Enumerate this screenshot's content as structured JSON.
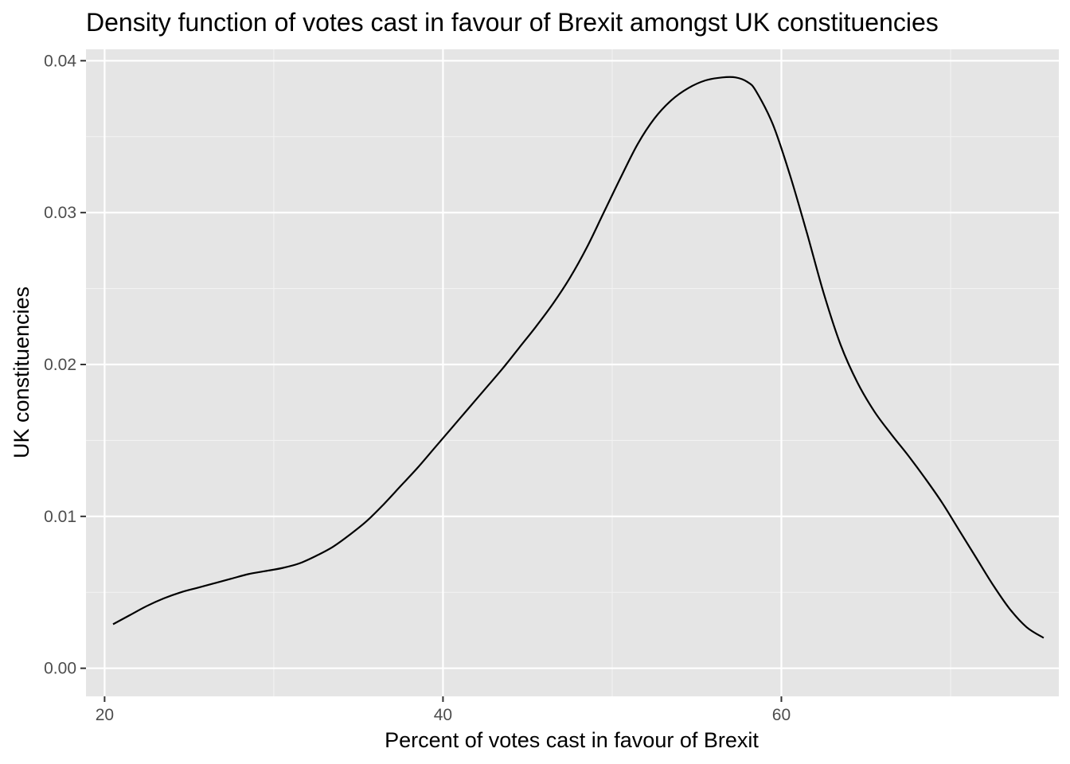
{
  "chart_data": {
    "type": "area",
    "title": "Density function of votes cast in favour of Brexit amongst UK constituencies",
    "xlabel": "Percent of votes cast in favour of Brexit",
    "ylabel": "UK constituencies",
    "xlim": [
      18.9,
      76.4
    ],
    "ylim": [
      -0.00185,
      0.04075
    ],
    "x_ticks": [
      20,
      40,
      60
    ],
    "x_tick_labels": [
      "20",
      "40",
      "60"
    ],
    "x_minor_ticks": [
      30,
      50,
      70
    ],
    "y_ticks": [
      0.0,
      0.01,
      0.02,
      0.03,
      0.04
    ],
    "y_tick_labels": [
      "0.00",
      "0.01",
      "0.02",
      "0.03",
      "0.04"
    ],
    "y_minor_ticks": [
      0.005,
      0.015,
      0.025,
      0.035
    ],
    "grid": true,
    "legend": "none",
    "colors": {
      "panel_background": "#e5e5e5",
      "grid_major": "#ffffff",
      "grid_minor": "#f2f2f2",
      "line": "#000000",
      "tick_text": "#4d4d4d",
      "title_text": "#000000"
    },
    "series": [
      {
        "x": [
          20.5,
          21.5,
          22.5,
          23.5,
          24.5,
          25.5,
          26.5,
          27.5,
          28.5,
          29.5,
          30.5,
          31.5,
          32.5,
          33.5,
          34.5,
          35.5,
          36.5,
          37.5,
          38.5,
          39.5,
          40.5,
          41.5,
          42.5,
          43.5,
          44.5,
          45.5,
          46.5,
          47.5,
          48.5,
          49.5,
          50.5,
          51.5,
          52.5,
          53.5,
          54.5,
          55.5,
          56.5,
          57.3,
          58.0,
          58.5,
          59.5,
          60.5,
          61.5,
          62.5,
          63.5,
          64.5,
          65.5,
          66.5,
          67.5,
          68.5,
          69.5,
          70.5,
          71.5,
          72.5,
          73.5,
          74.5,
          75.5
        ],
        "y": [
          0.0029,
          0.0035,
          0.0041,
          0.0046,
          0.005,
          0.0053,
          0.0056,
          0.0059,
          0.0062,
          0.0064,
          0.0066,
          0.0069,
          0.0074,
          0.008,
          0.0088,
          0.0097,
          0.0108,
          0.012,
          0.0132,
          0.0145,
          0.0158,
          0.0171,
          0.0184,
          0.0197,
          0.0211,
          0.0225,
          0.024,
          0.0257,
          0.0277,
          0.03,
          0.0323,
          0.0345,
          0.0362,
          0.0374,
          0.0382,
          0.0387,
          0.0389,
          0.0389,
          0.0386,
          0.038,
          0.0358,
          0.0325,
          0.0287,
          0.0247,
          0.0213,
          0.0188,
          0.0169,
          0.0154,
          0.014,
          0.0125,
          0.0109,
          0.0091,
          0.0073,
          0.0055,
          0.0039,
          0.0027,
          0.002
        ]
      }
    ]
  }
}
